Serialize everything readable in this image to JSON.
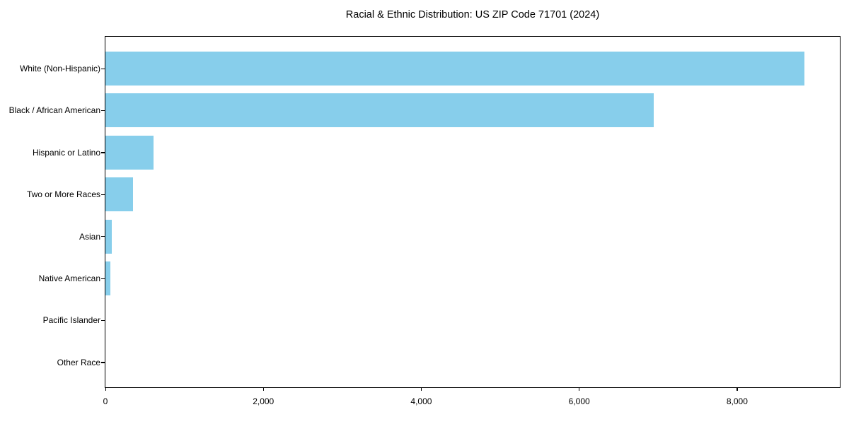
{
  "chart_data": {
    "type": "bar",
    "orientation": "horizontal",
    "title": "Racial & Ethnic Distribution: US ZIP Code 71701 (2024)",
    "xlabel": "",
    "ylabel": "",
    "categories": [
      "White (Non-Hispanic)",
      "Black / African American",
      "Hispanic or Latino",
      "Two or More Races",
      "Asian",
      "Native American",
      "Pacific Islander",
      "Other Race"
    ],
    "values": [
      8850,
      6940,
      610,
      350,
      80,
      60,
      0,
      0
    ],
    "bar_color": "#87CEEB",
    "xlim": [
      0,
      9300
    ],
    "x_ticks": [
      {
        "value": 0,
        "label": "0"
      },
      {
        "value": 2000,
        "label": "2,000"
      },
      {
        "value": 4000,
        "label": "4,000"
      },
      {
        "value": 6000,
        "label": "6,000"
      },
      {
        "value": 8000,
        "label": "8,000"
      }
    ],
    "grid": false,
    "legend_position": "none",
    "background_color": "#ffffff",
    "spine_color": "#000000"
  }
}
